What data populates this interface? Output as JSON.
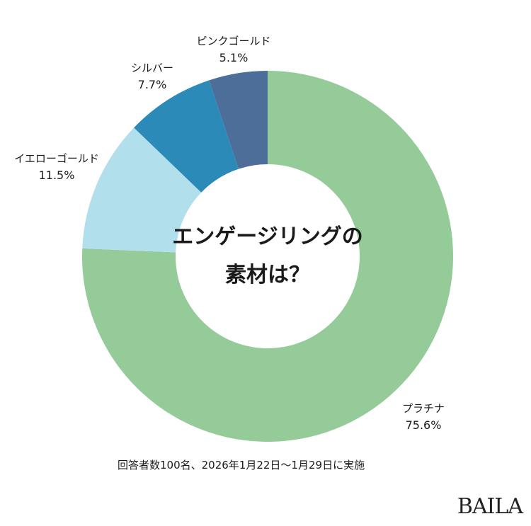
{
  "chart_data": {
    "type": "pie",
    "donut": true,
    "title": "エンゲージリングの素材は？",
    "title_lines": [
      "エンゲージリングの",
      "素材は？"
    ],
    "categories": [
      "プラチナ",
      "イエローゴールド",
      "シルバー",
      "ピンクゴールド"
    ],
    "values": [
      75.6,
      11.5,
      7.7,
      5.1
    ],
    "value_labels": [
      "75.6%",
      "11.5%",
      "7.7%",
      "5.1%"
    ],
    "colors": [
      "#94cb98",
      "#b2dfec",
      "#2b8ab8",
      "#4c6e98"
    ],
    "start": "top",
    "direction": "clockwise",
    "legend": "none"
  },
  "note": "回答者数100名、2026年1月22日〜1月29日に実施",
  "logo": "BAILA"
}
